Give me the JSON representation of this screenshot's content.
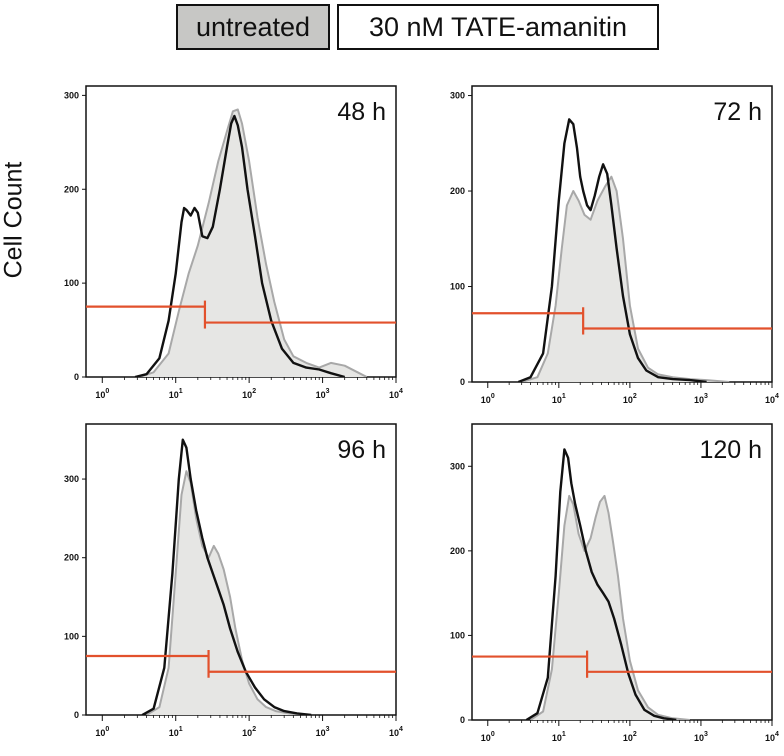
{
  "legend": {
    "untreated_label": "untreated",
    "treated_label": "30 nM TATE-amanitin",
    "untreated_fill": "#e6e6e4",
    "untreated_stroke": "#a8a8a8",
    "treated_stroke": "#111111",
    "gate_color": "#e2512c"
  },
  "chart_data": [
    {
      "type": "area",
      "title": "48 h",
      "ylabel": "Cell Count",
      "xscale": "log",
      "xlim": [
        0.6,
        10000
      ],
      "ylim": [
        0,
        310
      ],
      "x_ticks": [
        1,
        10,
        100,
        1000,
        10000
      ],
      "x_tick_labels": [
        {
          "base": "10",
          "exp": "0"
        },
        {
          "base": "10",
          "exp": "1"
        },
        {
          "base": "10",
          "exp": "2"
        },
        {
          "base": "10",
          "exp": "3"
        },
        {
          "base": "10",
          "exp": "4"
        }
      ],
      "y_ticks": [
        0,
        100,
        200,
        300
      ],
      "y_tick_labels": [
        "0",
        "100",
        "200",
        "300"
      ],
      "gates": [
        {
          "x0": 0.6,
          "x1": 25,
          "y": 75
        },
        {
          "x0": 25,
          "x1": 10000,
          "y": 58
        }
      ],
      "series": [
        {
          "name": "untreated",
          "style": "filled",
          "x": [
            3.2,
            5,
            8,
            11,
            15,
            20,
            28,
            38,
            50,
            60,
            70,
            80,
            100,
            130,
            170,
            220,
            300,
            400,
            600,
            900,
            1300,
            2000,
            3000,
            4000
          ],
          "y": [
            0,
            5,
            25,
            70,
            110,
            140,
            185,
            230,
            262,
            283,
            285,
            270,
            230,
            170,
            120,
            80,
            40,
            22,
            15,
            10,
            15,
            12,
            5,
            0
          ]
        },
        {
          "name": "30 nM TATE-amanitin",
          "style": "line",
          "x": [
            2.8,
            4,
            6,
            8,
            10,
            12,
            13,
            14,
            16,
            18,
            20,
            23,
            27,
            32,
            40,
            50,
            57,
            63,
            70,
            80,
            95,
            120,
            150,
            200,
            280,
            400,
            600,
            900,
            1300,
            2000
          ],
          "y": [
            0,
            3,
            20,
            60,
            110,
            165,
            180,
            178,
            172,
            180,
            175,
            150,
            148,
            160,
            200,
            245,
            270,
            278,
            268,
            245,
            200,
            150,
            100,
            60,
            30,
            15,
            10,
            8,
            4,
            0
          ]
        }
      ]
    },
    {
      "type": "area",
      "title": "72 h",
      "ylabel": "Cell Count",
      "xscale": "log",
      "xlim": [
        0.6,
        10000
      ],
      "ylim": [
        0,
        310
      ],
      "x_ticks": [
        1,
        10,
        100,
        1000,
        10000
      ],
      "x_tick_labels": [
        {
          "base": "10",
          "exp": "0"
        },
        {
          "base": "10",
          "exp": "1"
        },
        {
          "base": "10",
          "exp": "2"
        },
        {
          "base": "10",
          "exp": "3"
        },
        {
          "base": "10",
          "exp": "4"
        }
      ],
      "y_ticks": [
        0,
        100,
        200,
        300
      ],
      "y_tick_labels": [
        "0",
        "100",
        "200",
        "300"
      ],
      "gates": [
        {
          "x0": 0.6,
          "x1": 22,
          "y": 72
        },
        {
          "x0": 22,
          "x1": 10000,
          "y": 56
        }
      ],
      "series": [
        {
          "name": "untreated",
          "style": "filled",
          "x": [
            3,
            5,
            7,
            9,
            11,
            13,
            16,
            19,
            23,
            28,
            35,
            45,
            55,
            65,
            80,
            100,
            130,
            180,
            250,
            400,
            700,
            1200,
            2500
          ],
          "y": [
            0,
            5,
            30,
            80,
            140,
            185,
            200,
            190,
            175,
            170,
            190,
            205,
            215,
            200,
            150,
            80,
            35,
            15,
            8,
            5,
            3,
            2,
            0
          ]
        },
        {
          "name": "30 nM TATE-amanitin",
          "style": "line",
          "x": [
            2.7,
            4,
            6,
            8,
            10,
            12,
            14,
            16,
            18,
            20,
            22,
            25,
            28,
            32,
            37,
            42,
            48,
            55,
            65,
            80,
            100,
            130,
            170,
            250,
            400,
            700,
            1200
          ],
          "y": [
            0,
            5,
            30,
            100,
            190,
            250,
            275,
            270,
            245,
            215,
            200,
            185,
            180,
            195,
            215,
            228,
            218,
            185,
            140,
            90,
            50,
            25,
            12,
            5,
            3,
            2,
            0
          ]
        }
      ]
    },
    {
      "type": "area",
      "title": "96 h",
      "ylabel": "Cell Count",
      "xscale": "log",
      "xlim": [
        0.6,
        10000
      ],
      "ylim": [
        0,
        370
      ],
      "x_ticks": [
        1,
        10,
        100,
        1000,
        10000
      ],
      "x_tick_labels": [
        {
          "base": "10",
          "exp": "0"
        },
        {
          "base": "10",
          "exp": "1"
        },
        {
          "base": "10",
          "exp": "2"
        },
        {
          "base": "10",
          "exp": "3"
        },
        {
          "base": "10",
          "exp": "4"
        }
      ],
      "y_ticks": [
        0,
        100,
        200,
        300
      ],
      "y_tick_labels": [
        "0",
        "100",
        "200",
        "300"
      ],
      "gates": [
        {
          "x0": 0.6,
          "x1": 28,
          "y": 75
        },
        {
          "x0": 28,
          "x1": 10000,
          "y": 55
        }
      ],
      "series": [
        {
          "name": "untreated",
          "style": "filled",
          "x": [
            4,
            6,
            8,
            10,
            12,
            14,
            16,
            19,
            23,
            28,
            33,
            38,
            45,
            55,
            65,
            80,
            100,
            130,
            170,
            230,
            350,
            600
          ],
          "y": [
            0,
            10,
            60,
            180,
            280,
            310,
            295,
            250,
            215,
            200,
            215,
            205,
            185,
            150,
            110,
            70,
            40,
            20,
            10,
            5,
            2,
            0
          ]
        },
        {
          "name": "30 nM TATE-amanitin",
          "style": "line",
          "x": [
            3.5,
            5,
            7,
            9,
            11,
            12.5,
            14,
            16,
            19,
            23,
            27,
            32,
            38,
            45,
            55,
            70,
            90,
            120,
            160,
            220,
            300,
            450,
            700
          ],
          "y": [
            0,
            8,
            60,
            180,
            300,
            350,
            340,
            300,
            260,
            225,
            200,
            180,
            160,
            140,
            110,
            80,
            55,
            35,
            20,
            10,
            5,
            2,
            0
          ]
        }
      ]
    },
    {
      "type": "area",
      "title": "120 h",
      "ylabel": "Cell Count",
      "xscale": "log",
      "xlim": [
        0.6,
        10000
      ],
      "ylim": [
        0,
        350
      ],
      "x_ticks": [
        1,
        10,
        100,
        1000,
        10000
      ],
      "x_tick_labels": [
        {
          "base": "10",
          "exp": "0"
        },
        {
          "base": "10",
          "exp": "1"
        },
        {
          "base": "10",
          "exp": "2"
        },
        {
          "base": "10",
          "exp": "3"
        },
        {
          "base": "10",
          "exp": "4"
        }
      ],
      "y_ticks": [
        0,
        100,
        200,
        300
      ],
      "y_tick_labels": [
        "0",
        "100",
        "200",
        "300"
      ],
      "gates": [
        {
          "x0": 0.6,
          "x1": 25,
          "y": 75
        },
        {
          "x0": 25,
          "x1": 10000,
          "y": 57
        }
      ],
      "series": [
        {
          "name": "untreated",
          "style": "filled",
          "x": [
            4,
            6,
            8,
            10,
            12,
            14,
            16,
            19,
            23,
            28,
            33,
            38,
            44,
            50,
            58,
            68,
            80,
            100,
            130,
            180,
            250,
            400,
            700
          ],
          "y": [
            0,
            10,
            60,
            150,
            230,
            265,
            255,
            220,
            200,
            215,
            240,
            258,
            265,
            245,
            210,
            170,
            120,
            70,
            35,
            15,
            6,
            2,
            0
          ]
        },
        {
          "name": "30 nM TATE-amanitin",
          "style": "line",
          "x": [
            3.5,
            5,
            7,
            9,
            10.5,
            12,
            13.5,
            15,
            17,
            20,
            24,
            29,
            35,
            42,
            50,
            60,
            75,
            95,
            120,
            160,
            220,
            300,
            450
          ],
          "y": [
            0,
            8,
            50,
            170,
            270,
            320,
            310,
            280,
            255,
            230,
            200,
            175,
            160,
            150,
            140,
            120,
            90,
            55,
            30,
            12,
            5,
            2,
            0
          ]
        }
      ]
    }
  ]
}
